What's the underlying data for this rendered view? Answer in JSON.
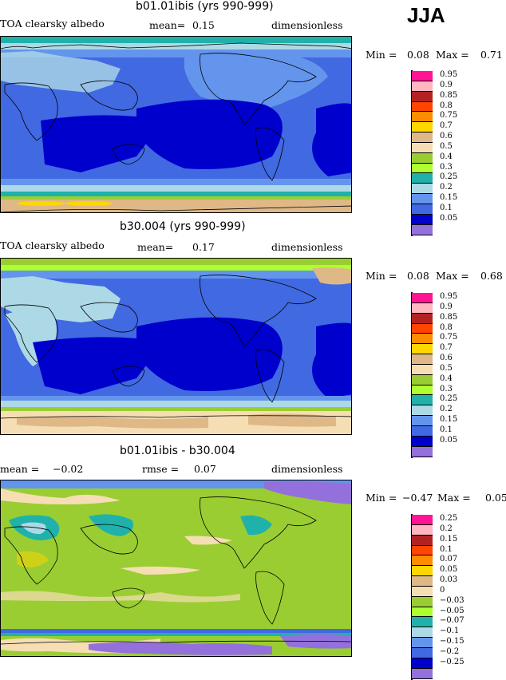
{
  "season": "JJA",
  "panels": [
    {
      "title": "b01.01ibis (yrs 990-999)",
      "left_label": "TOA clearsky albedo",
      "mid_label": "mean=",
      "mid_value": "0.15",
      "right_label": "dimensionless",
      "min_label": "Min =",
      "min_value": "0.08",
      "max_label": "Max =",
      "max_value": "0.71",
      "legend": [
        "0.95",
        "0.9",
        "0.85",
        "0.8",
        "0.75",
        "0.7",
        "0.6",
        "0.5",
        "0.4",
        "0.3",
        "0.25",
        "0.2",
        "0.15",
        "0.1",
        "0.05"
      ]
    },
    {
      "title": "b30.004 (yrs 990-999)",
      "left_label": "TOA clearsky albedo",
      "mid_label": "mean=",
      "mid_value": "0.17",
      "right_label": "dimensionless",
      "min_label": "Min =",
      "min_value": "0.08",
      "max_label": "Max =",
      "max_value": "0.68",
      "legend": [
        "0.95",
        "0.9",
        "0.85",
        "0.8",
        "0.75",
        "0.7",
        "0.6",
        "0.5",
        "0.4",
        "0.3",
        "0.25",
        "0.2",
        "0.15",
        "0.1",
        "0.05"
      ]
    },
    {
      "title": "b01.01ibis - b30.004",
      "left_label": "mean =",
      "left_value": "−0.02",
      "mid_label": "rmse =",
      "mid_value": "0.07",
      "right_label": "dimensionless",
      "min_label": "Min =",
      "min_value": "−0.47",
      "max_label": "Max =",
      "max_value": "0.05",
      "legend": [
        "0.25",
        "0.2",
        "0.15",
        "0.1",
        "0.07",
        "0.05",
        "0.03",
        "0",
        "−0.03",
        "−0.05",
        "−0.07",
        "−0.1",
        "−0.15",
        "−0.2",
        "−0.25"
      ]
    }
  ],
  "palette": [
    "#ff1493",
    "#ffb6c1",
    "#b22222",
    "#ff4500",
    "#ff8c00",
    "#ffd700",
    "#deb887",
    "#f5deb3",
    "#9acd32",
    "#adff2f",
    "#20b2aa",
    "#add8e6",
    "#6495ed",
    "#4169e1",
    "#0000cd",
    "#9370db"
  ]
}
